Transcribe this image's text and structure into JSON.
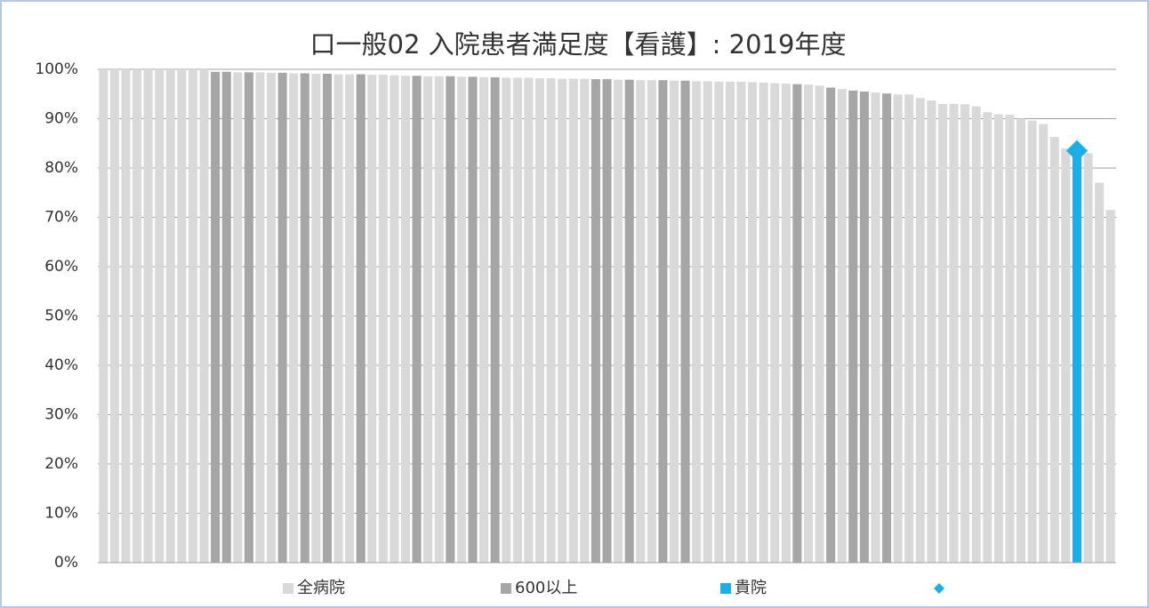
{
  "chart_data": {
    "type": "bar",
    "title": "口一般02 入院患者満足度【看護】: 2019年度",
    "categories": [
      null,
      null,
      null,
      null,
      null,
      null,
      null,
      null,
      null,
      null,
      null,
      null,
      null,
      null,
      null,
      null,
      null,
      null,
      null,
      null,
      null,
      null,
      null,
      null,
      null,
      null,
      null,
      null,
      null,
      null,
      null,
      null,
      null,
      null,
      null,
      null,
      null,
      null,
      null,
      null,
      null,
      null,
      null,
      null,
      null,
      null,
      null,
      null,
      null,
      null,
      null,
      null,
      null,
      null,
      null,
      null,
      null,
      null,
      null,
      null,
      null,
      null,
      null,
      null,
      null,
      null,
      null,
      null,
      null,
      null,
      null,
      null,
      null,
      null,
      null,
      null,
      null,
      null,
      null,
      null,
      null,
      null,
      null,
      null,
      null,
      null,
      null,
      null,
      null,
      null,
      null
    ],
    "series": [
      {
        "name": "全病院",
        "color": "#d9d9d9",
        "values": [
          100,
          100,
          100,
          100,
          100,
          100,
          100,
          100,
          100,
          100,
          null,
          null,
          99.4,
          null,
          99.4,
          99.3,
          null,
          99.2,
          null,
          99.1,
          null,
          99.0,
          99.0,
          null,
          98.9,
          98.9,
          98.8,
          98.7,
          null,
          98.6,
          98.6,
          null,
          98.5,
          null,
          98.4,
          null,
          98.3,
          98.3,
          98.3,
          98.2,
          98.2,
          98.1,
          98.1,
          98.1,
          null,
          null,
          97.9,
          null,
          97.8,
          97.8,
          null,
          97.7,
          null,
          97.6,
          97.6,
          97.5,
          97.5,
          97.5,
          97.4,
          97.3,
          97.2,
          97.1,
          null,
          96.9,
          96.7,
          null,
          96.0,
          null,
          null,
          95.3,
          null,
          94.9,
          94.9,
          94.2,
          93.7,
          93.0,
          93.0,
          92.9,
          92.5,
          91.3,
          90.9,
          90.8,
          90.0,
          89.6,
          88.9,
          86.3,
          84.0,
          null,
          83.0,
          77.0,
          71.5
        ]
      },
      {
        "name": "600以上",
        "color": "#a6a6a6",
        "values": [
          null,
          null,
          null,
          null,
          null,
          null,
          null,
          null,
          null,
          null,
          99.5,
          99.5,
          null,
          99.4,
          null,
          null,
          99.3,
          null,
          99.2,
          null,
          99.1,
          null,
          null,
          99.0,
          null,
          null,
          null,
          null,
          98.7,
          null,
          null,
          98.6,
          null,
          98.5,
          null,
          98.4,
          null,
          null,
          null,
          null,
          null,
          null,
          null,
          null,
          98.0,
          98.0,
          null,
          97.9,
          null,
          null,
          97.8,
          null,
          97.7,
          null,
          null,
          null,
          null,
          null,
          null,
          null,
          null,
          null,
          97.0,
          null,
          null,
          96.3,
          null,
          95.7,
          95.5,
          null,
          95.1,
          null,
          null,
          null,
          null,
          null,
          null,
          null,
          null,
          null,
          null,
          null,
          null,
          null,
          null,
          null,
          null,
          null,
          null,
          null,
          null
        ]
      },
      {
        "name": "貴院",
        "color": "#1aafe6",
        "values": [
          null,
          null,
          null,
          null,
          null,
          null,
          null,
          null,
          null,
          null,
          null,
          null,
          null,
          null,
          null,
          null,
          null,
          null,
          null,
          null,
          null,
          null,
          null,
          null,
          null,
          null,
          null,
          null,
          null,
          null,
          null,
          null,
          null,
          null,
          null,
          null,
          null,
          null,
          null,
          null,
          null,
          null,
          null,
          null,
          null,
          null,
          null,
          null,
          null,
          null,
          null,
          null,
          null,
          null,
          null,
          null,
          null,
          null,
          null,
          null,
          null,
          null,
          null,
          null,
          null,
          null,
          null,
          null,
          null,
          null,
          null,
          null,
          null,
          null,
          null,
          null,
          null,
          null,
          null,
          null,
          null,
          null,
          null,
          null,
          null,
          null,
          null,
          83.5,
          null,
          null,
          null
        ]
      },
      {
        "marker": "diamond",
        "color": "#1aafe6",
        "values": [
          null,
          null,
          null,
          null,
          null,
          null,
          null,
          null,
          null,
          null,
          null,
          null,
          null,
          null,
          null,
          null,
          null,
          null,
          null,
          null,
          null,
          null,
          null,
          null,
          null,
          null,
          null,
          null,
          null,
          null,
          null,
          null,
          null,
          null,
          null,
          null,
          null,
          null,
          null,
          null,
          null,
          null,
          null,
          null,
          null,
          null,
          null,
          null,
          null,
          null,
          null,
          null,
          null,
          null,
          null,
          null,
          null,
          null,
          null,
          null,
          null,
          null,
          null,
          null,
          null,
          null,
          null,
          null,
          null,
          null,
          null,
          null,
          null,
          null,
          null,
          null,
          null,
          null,
          null,
          null,
          null,
          null,
          null,
          null,
          null,
          null,
          null,
          83.5,
          null,
          null,
          null
        ]
      }
    ],
    "ylim": [
      0,
      100
    ],
    "yticks": [
      {
        "value": 0,
        "label": "0%"
      },
      {
        "value": 10,
        "label": "10%"
      },
      {
        "value": 20,
        "label": "20%"
      },
      {
        "value": 30,
        "label": "30%"
      },
      {
        "value": 40,
        "label": "40%"
      },
      {
        "value": 50,
        "label": "50%"
      },
      {
        "value": 60,
        "label": "60%"
      },
      {
        "value": 70,
        "label": "70%"
      },
      {
        "value": 80,
        "label": "80%"
      },
      {
        "value": 90,
        "label": "90%"
      },
      {
        "value": 100,
        "label": "100%"
      }
    ],
    "grid": true
  }
}
